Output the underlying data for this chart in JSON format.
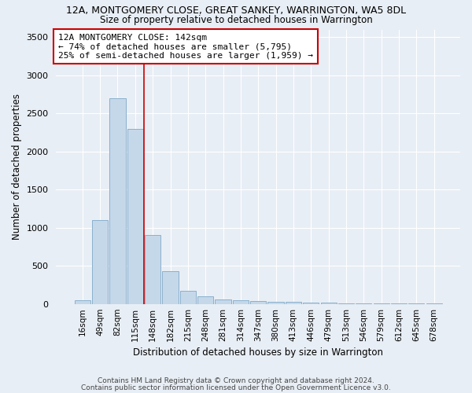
{
  "title1": "12A, MONTGOMERY CLOSE, GREAT SANKEY, WARRINGTON, WA5 8DL",
  "title2": "Size of property relative to detached houses in Warrington",
  "xlabel": "Distribution of detached houses by size in Warrington",
  "ylabel": "Number of detached properties",
  "categories": [
    "16sqm",
    "49sqm",
    "82sqm",
    "115sqm",
    "148sqm",
    "182sqm",
    "215sqm",
    "248sqm",
    "281sqm",
    "314sqm",
    "347sqm",
    "380sqm",
    "413sqm",
    "446sqm",
    "479sqm",
    "513sqm",
    "546sqm",
    "579sqm",
    "612sqm",
    "645sqm",
    "678sqm"
  ],
  "values": [
    50,
    1100,
    2700,
    2300,
    900,
    430,
    170,
    100,
    55,
    50,
    40,
    30,
    25,
    20,
    15,
    10,
    8,
    5,
    5,
    3,
    2
  ],
  "bar_color": "#c5d8ea",
  "bar_edge_color": "#8ab0cc",
  "background_color": "#e8eef5",
  "grid_color": "#ffffff",
  "red_line_x": 3.5,
  "annotation_text": "12A MONTGOMERY CLOSE: 142sqm\n← 74% of detached houses are smaller (5,795)\n25% of semi-detached houses are larger (1,959) →",
  "annotation_box_color": "#ffffff",
  "annotation_box_edge": "#cc0000",
  "footer1": "Contains HM Land Registry data © Crown copyright and database right 2024.",
  "footer2": "Contains public sector information licensed under the Open Government Licence v3.0.",
  "ylim": [
    0,
    3600
  ],
  "yticks": [
    0,
    500,
    1000,
    1500,
    2000,
    2500,
    3000,
    3500
  ]
}
